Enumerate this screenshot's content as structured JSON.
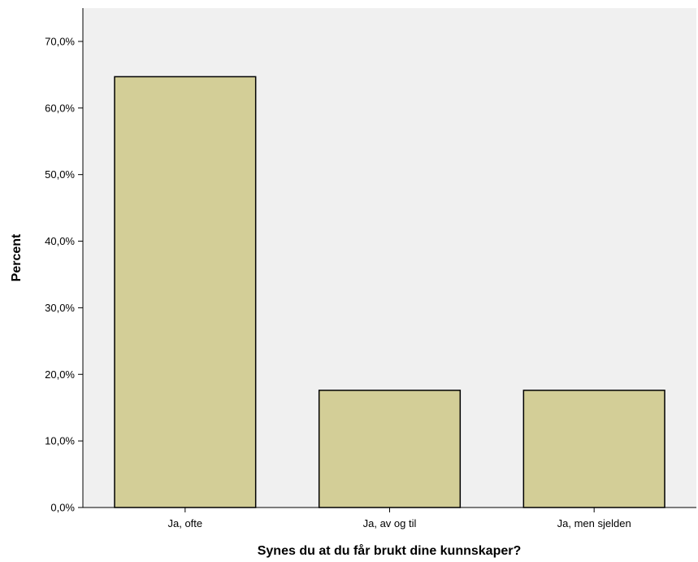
{
  "chart_data": {
    "type": "bar",
    "title": "",
    "xlabel": "Synes du at du får brukt dine kunnskaper?",
    "ylabel": "Percent",
    "categories": [
      "Ja, ofte",
      "Ja, av og til",
      "Ja, men sjelden"
    ],
    "values": [
      64.7,
      17.6,
      17.6
    ],
    "ylim": [
      0,
      75
    ],
    "yticks": [
      0,
      10,
      20,
      30,
      40,
      50,
      60,
      70
    ],
    "ytick_labels": [
      "0,0%",
      "10,0%",
      "20,0%",
      "30,0%",
      "40,0%",
      "50,0%",
      "60,0%",
      "70,0%"
    ],
    "grid": false,
    "legend": "none",
    "colors": {
      "plot_background": "#f0f0f0",
      "bar_fill": "#d3ce97",
      "bar_stroke": "#000000",
      "axis": "#000000"
    }
  }
}
